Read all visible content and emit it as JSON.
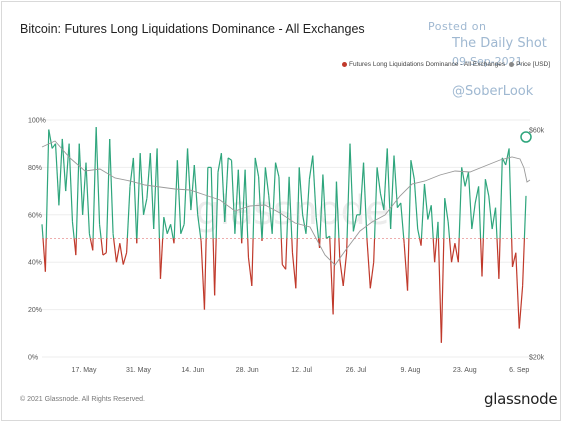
{
  "title": "Bitcoin: Futures Long Liquidations Dominance - All Exchanges",
  "watermark": {
    "posted": "Posted on",
    "source": "The Daily Shot",
    "date": "09-Sep-2021",
    "handle": "@SoberLook"
  },
  "footer": "© 2021 Glassnode. All Rights Reserved.",
  "brand": "glassnode",
  "colors": {
    "above": "#2ea57c",
    "below": "#c0392b",
    "price": "#9a9a9a",
    "baseline": "#e06666",
    "highlight": "#2ea57c"
  },
  "chart_data": {
    "type": "line",
    "title": "Bitcoin: Futures Long Liquidations Dominance - All Exchanges",
    "x_tick_labels": [
      "17. May",
      "31. May",
      "14. Jun",
      "28. Jun",
      "12. Jul",
      "26. Jul",
      "9. Aug",
      "23. Aug",
      "6. Sep"
    ],
    "y_left_ticks": [
      "0%",
      "20%",
      "40%",
      "60%",
      "80%",
      "100%"
    ],
    "y_left_range": [
      0,
      100
    ],
    "y_right_ticks": [
      "$20k",
      "$60k"
    ],
    "baseline": 50,
    "series": [
      {
        "name": "Futures Long Liquidations Dominance - All Exchanges",
        "axis": "left",
        "unit": "%",
        "values": [
          56,
          36,
          96,
          88,
          90,
          64,
          92,
          70,
          90,
          57,
          43,
          90,
          60,
          82,
          52,
          45,
          97,
          56,
          43,
          44,
          92,
          52,
          40,
          48,
          39,
          44,
          72,
          84,
          48,
          86,
          60,
          67,
          86,
          54,
          88,
          33,
          59,
          52,
          56,
          48,
          83,
          52,
          56,
          88,
          62,
          81,
          60,
          49,
          20,
          80,
          80,
          26,
          78,
          86,
          57,
          84,
          83,
          52,
          79,
          48,
          79,
          42,
          30,
          84,
          76,
          49,
          80,
          68,
          52,
          82,
          76,
          39,
          37,
          76,
          44,
          29,
          80,
          60,
          52,
          75,
          85,
          59,
          46,
          77,
          50,
          51,
          18,
          74,
          41,
          30,
          44,
          90,
          53,
          60,
          60,
          82,
          50,
          29,
          40,
          80,
          69,
          62,
          88,
          54,
          85,
          63,
          65,
          48,
          28,
          83,
          75,
          54,
          47,
          73,
          58,
          64,
          40,
          57,
          6,
          67,
          57,
          40,
          48,
          40,
          80,
          72,
          78,
          54,
          65,
          72,
          34,
          75,
          68,
          54,
          63,
          33,
          84,
          81,
          88,
          38,
          44,
          12,
          30,
          68
        ]
      },
      {
        "name": "Price [USD]",
        "axis": "right",
        "unit": "$"
      }
    ],
    "legend": "top-right",
    "grid": "horizontal"
  }
}
